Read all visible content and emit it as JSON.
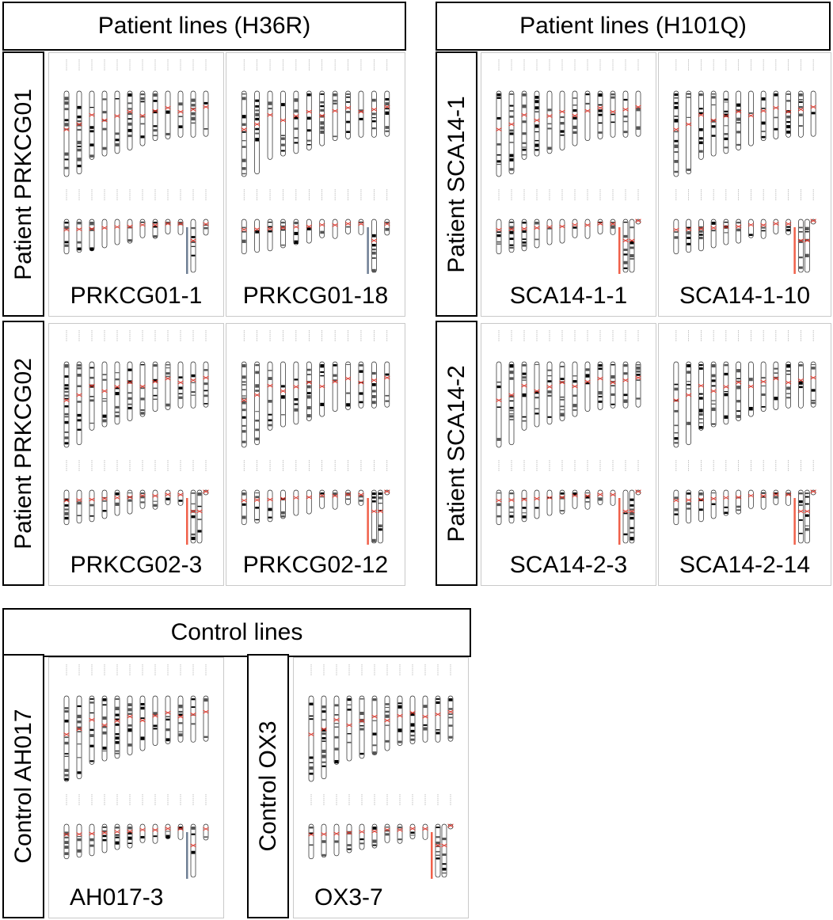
{
  "groups": {
    "h36r": "Patient lines (H36R)",
    "h101q": "Patient lines (H101Q)",
    "control": "Control lines"
  },
  "rows": {
    "prkcg01": "Patient PRKCG01",
    "prkcg02": "Patient PRKCG02",
    "sca14_1": "Patient SCA14-1",
    "sca14_2": "Patient SCA14-2",
    "ah017": "Control AH017",
    "ox3": "Control OX3"
  },
  "panels": {
    "prkcg01_1": {
      "caption": "PRKCG01-1",
      "sex": "male"
    },
    "prkcg01_18": {
      "caption": "PRKCG01-18",
      "sex": "male"
    },
    "prkcg02_3": {
      "caption": "PRKCG02-3",
      "sex": "female"
    },
    "prkcg02_12": {
      "caption": "PRKCG02-12",
      "sex": "female"
    },
    "sca14_1_1": {
      "caption": "SCA14-1-1",
      "sex": "female"
    },
    "sca14_1_10": {
      "caption": "SCA14-1-10",
      "sex": "female"
    },
    "sca14_2_3": {
      "caption": "SCA14-2-3",
      "sex": "female"
    },
    "sca14_2_14": {
      "caption": "SCA14-2-14",
      "sex": "female"
    },
    "ah017_3": {
      "caption": "AH017-3",
      "sex": "male"
    },
    "ox3_7": {
      "caption": "OX3-7",
      "sex": "female"
    }
  },
  "colors": {
    "centromere": "#e03a2f",
    "female_x_bar": "#f0604a",
    "male_xy_bar": "#6f7f95",
    "border": "#000000",
    "panel_border": "#c9c9c9"
  }
}
